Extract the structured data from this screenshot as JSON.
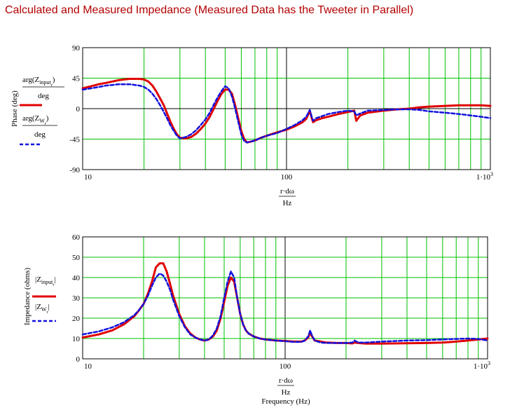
{
  "title": "Calculated and Measured Impedance (Measured Data has the Tweeter in Parallel)",
  "colors": {
    "calculated": "#e00000",
    "measured": "#1010e0",
    "grid": "#00c000",
    "title": "#b40000"
  },
  "chart_data": [
    {
      "type": "line",
      "ylabel": "Phase (deg)",
      "x_scale": "log",
      "xlim": [
        10,
        1000
      ],
      "ylim": [
        -90,
        90
      ],
      "yticks": [
        "90",
        "45",
        "0",
        "-45",
        "-90"
      ],
      "xticks": [
        "10",
        "100",
        "1·10"
      ],
      "xtick_sup": "3",
      "xlabel": {
        "num": "r·dω",
        "den": "Hz"
      },
      "legend": [
        {
          "num_a": "arg(Z",
          "num_sub": "input",
          "num_sub2": "r",
          "num_b": ")",
          "den": "deg"
        },
        {
          "num_a": "arg(Z",
          "num_sub": "W",
          "num_sub2": "r",
          "num_b": ")",
          "den": "deg"
        }
      ],
      "grid": true,
      "series": [
        {
          "x": [
            10,
            11,
            12,
            13,
            14,
            15,
            16,
            17,
            18,
            19,
            20,
            21,
            22,
            23,
            24,
            25,
            26,
            27,
            28,
            29,
            30,
            32,
            34,
            36,
            38,
            40,
            42,
            44,
            46,
            48,
            50,
            52,
            54,
            56,
            58,
            60,
            62,
            64,
            66,
            68,
            70,
            75,
            80,
            90,
            100,
            110,
            120,
            125,
            130,
            133,
            135,
            140,
            150,
            160,
            180,
            200,
            215,
            220,
            230,
            250,
            300,
            350,
            400,
            450,
            500,
            600,
            700,
            800,
            900,
            1000
          ],
          "y": [
            30,
            33,
            36,
            38,
            40,
            42,
            43,
            44,
            44,
            44,
            43,
            40,
            34,
            25,
            15,
            5,
            -8,
            -20,
            -30,
            -38,
            -43,
            -44,
            -42,
            -37,
            -30,
            -22,
            -12,
            0,
            12,
            22,
            28,
            28,
            22,
            5,
            -15,
            -33,
            -45,
            -50,
            -49,
            -48,
            -47,
            -43,
            -40,
            -35,
            -31,
            -26,
            -20,
            -15,
            -3,
            -14,
            -20,
            -17,
            -14,
            -12,
            -8,
            -5,
            -3,
            -18,
            -10,
            -6,
            -3,
            -1,
            0,
            2,
            3,
            4,
            5,
            5,
            5,
            4
          ]
        },
        {
          "x": [
            10,
            11,
            12,
            13,
            14,
            15,
            16,
            17,
            18,
            19,
            20,
            21,
            22,
            23,
            24,
            25,
            26,
            27,
            28,
            29,
            30,
            32,
            34,
            36,
            38,
            40,
            42,
            44,
            46,
            48,
            50,
            52,
            54,
            56,
            58,
            60,
            62,
            64,
            66,
            68,
            70,
            75,
            80,
            90,
            100,
            110,
            120,
            125,
            130,
            133,
            135,
            140,
            150,
            160,
            180,
            200,
            215,
            220,
            230,
            250,
            300,
            350,
            400,
            450,
            500,
            600,
            700,
            800,
            900,
            1000
          ],
          "y": [
            28,
            30,
            32,
            34,
            35,
            36,
            36,
            36,
            35,
            34,
            32,
            28,
            22,
            14,
            5,
            -5,
            -15,
            -25,
            -33,
            -40,
            -44,
            -42,
            -38,
            -32,
            -24,
            -16,
            -6,
            6,
            17,
            26,
            33,
            30,
            18,
            0,
            -20,
            -38,
            -48,
            -50,
            -49,
            -48,
            -47,
            -43,
            -40,
            -36,
            -30,
            -24,
            -17,
            -12,
            -2,
            -12,
            -18,
            -14,
            -11,
            -8,
            -5,
            -3,
            -4,
            -10,
            -7,
            -3,
            -2,
            -1,
            -1,
            -2,
            -4,
            -6,
            -8,
            -10,
            -12,
            -14
          ]
        }
      ]
    },
    {
      "type": "line",
      "ylabel": "Impedance (ohms)",
      "x_scale": "log",
      "xlim": [
        10,
        1000
      ],
      "ylim": [
        0,
        60
      ],
      "yticks": [
        "60",
        "50",
        "40",
        "30",
        "20",
        "10",
        "0"
      ],
      "xticks": [
        "10",
        "100",
        "1·10"
      ],
      "xtick_sup": "3",
      "xlabel": {
        "num": "r·dω",
        "den": "Hz",
        "extra": "Frequency (Hz)"
      },
      "legend": [
        {
          "num_a": "|Z",
          "num_sub": "input",
          "num_sub2": "r",
          "num_b": "|",
          "den": ""
        },
        {
          "num_a": "|Z",
          "num_sub": "W",
          "num_sub2": "r",
          "num_b": "|",
          "den": ""
        }
      ],
      "grid": true,
      "series": [
        {
          "x": [
            10,
            12,
            14,
            16,
            18,
            19,
            20,
            21,
            22,
            23,
            24,
            25,
            26,
            27,
            28,
            30,
            32,
            34,
            36,
            38,
            40,
            42,
            44,
            46,
            48,
            50,
            52,
            54,
            56,
            58,
            60,
            62,
            64,
            66,
            70,
            75,
            80,
            90,
            100,
            110,
            120,
            125,
            130,
            133,
            135,
            140,
            150,
            160,
            180,
            200,
            215,
            220,
            230,
            250,
            300,
            400,
            500,
            600,
            700,
            800,
            900,
            1000
          ],
          "y": [
            10.5,
            12,
            14,
            17,
            21,
            24,
            27,
            32,
            38,
            45,
            47,
            47,
            43,
            37,
            31,
            22,
            16,
            12.5,
            10.5,
            9.5,
            9,
            9.5,
            11,
            14,
            20,
            28,
            36,
            40,
            38,
            30,
            22,
            17,
            14,
            12.5,
            11,
            10,
            9.5,
            9,
            8.8,
            8.5,
            8.5,
            9,
            10.5,
            13,
            11.5,
            9,
            8.5,
            8,
            7.8,
            7.8,
            7.6,
            8,
            7.8,
            7.5,
            7.5,
            7.7,
            7.8,
            8,
            8.5,
            9,
            9.5,
            10
          ]
        },
        {
          "x": [
            10,
            12,
            14,
            16,
            18,
            19,
            20,
            21,
            22,
            23,
            24,
            25,
            26,
            27,
            28,
            30,
            32,
            34,
            36,
            38,
            40,
            42,
            44,
            46,
            48,
            50,
            52,
            54,
            56,
            58,
            60,
            62,
            64,
            66,
            70,
            75,
            80,
            90,
            100,
            110,
            120,
            125,
            130,
            133,
            135,
            140,
            150,
            160,
            180,
            200,
            215,
            220,
            230,
            250,
            300,
            400,
            500,
            600,
            700,
            800,
            900,
            1000
          ],
          "y": [
            12,
            13.5,
            15.5,
            18,
            21.5,
            24,
            27,
            31,
            36,
            40,
            42,
            41,
            38,
            34,
            29,
            21,
            15.5,
            12,
            10.5,
            9.5,
            9,
            9.5,
            11.5,
            15,
            21,
            30,
            38,
            43,
            40,
            30,
            22,
            17,
            14,
            12.5,
            11,
            10,
            9.5,
            9,
            8.7,
            8.3,
            8.3,
            9,
            11,
            14,
            12,
            9,
            8,
            7.8,
            7.8,
            7.8,
            8,
            9,
            8,
            8,
            8.5,
            9,
            9.2,
            9.5,
            9.8,
            10,
            9.8,
            9
          ]
        }
      ]
    }
  ]
}
